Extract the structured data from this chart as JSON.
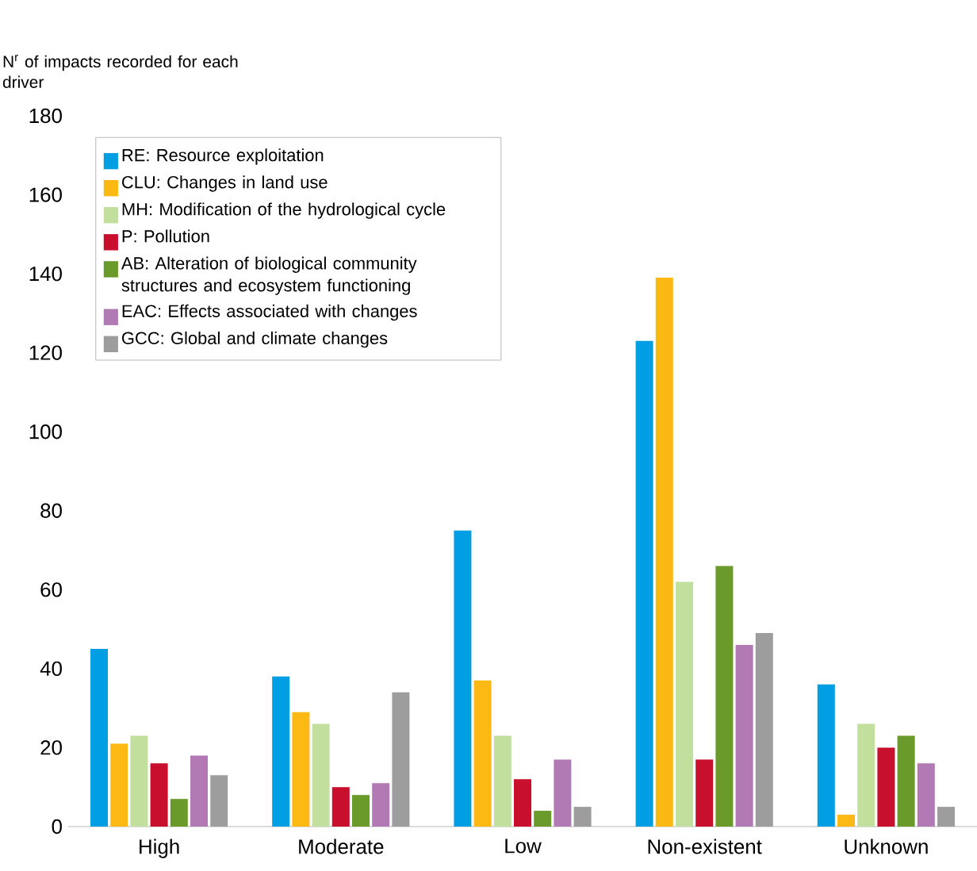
{
  "chart_data": {
    "type": "bar",
    "ylabel": "N$^{r}$ of impacts recorded for each driver",
    "categories": [
      "High",
      "Moderate",
      "Low",
      "Non-existent",
      "Unknown"
    ],
    "series": [
      {
        "name": "RE: Resource exploitation",
        "color": "#009fe3",
        "values": [
          45,
          38,
          75,
          123,
          36
        ]
      },
      {
        "name": "CLU: Changes in land use",
        "color": "#fdb913",
        "values": [
          21,
          29,
          37,
          139,
          3
        ]
      },
      {
        "name": "MH: Modification of the hydrological cycle",
        "color": "#c2df9e",
        "values": [
          23,
          26,
          23,
          62,
          26
        ]
      },
      {
        "name": "P: Pollution",
        "color": "#c8102e",
        "values": [
          16,
          10,
          12,
          17,
          20
        ]
      },
      {
        "name": "AB: Alteration of biological community structures and ecosystem functioning",
        "color": "#6a9a2a",
        "values": [
          7,
          8,
          4,
          66,
          23
        ]
      },
      {
        "name": "EAC: Effects associated with changes",
        "color": "#b27ab4",
        "values": [
          18,
          11,
          17,
          46,
          16
        ]
      },
      {
        "name": "GCC: Global and climate changes",
        "color": "#9d9d9d",
        "values": [
          13,
          34,
          5,
          49,
          5
        ]
      }
    ],
    "ylim": [
      0,
      180
    ],
    "yticks": [
      0,
      20,
      40,
      60,
      80,
      100,
      120,
      140,
      160,
      180
    ],
    "grid": false,
    "legend": "top left"
  }
}
